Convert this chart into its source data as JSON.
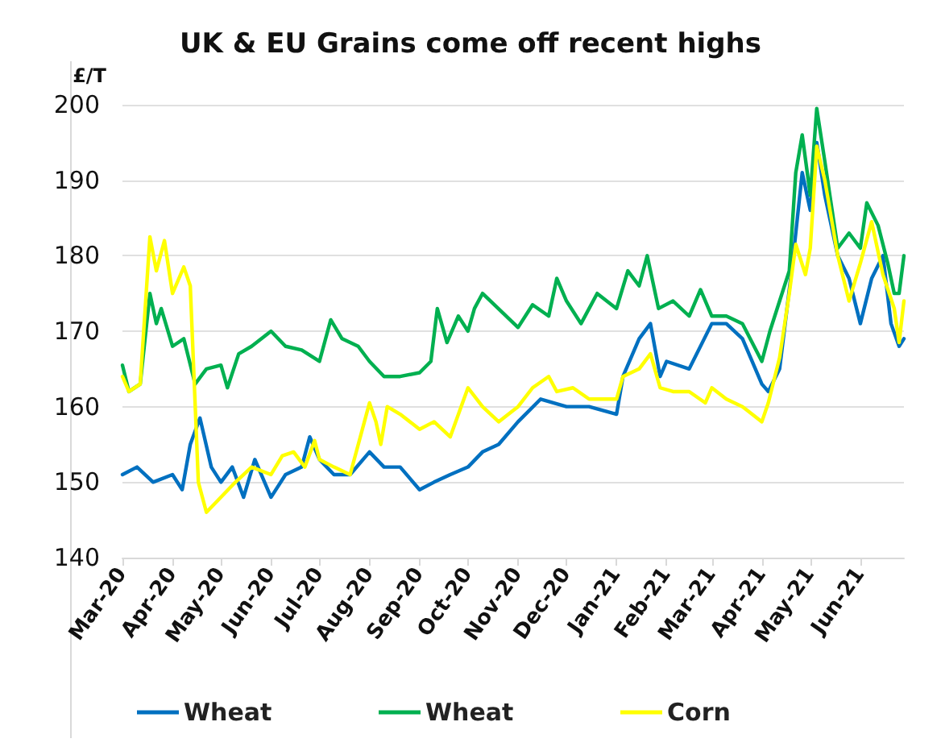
{
  "chart_data": {
    "type": "line",
    "title": "UK & EU Grains come off recent highs",
    "ylabel": "£/T",
    "xlim": [
      "2020-03-01",
      "2021-06-28"
    ],
    "xticks": [
      {
        "value": "2020-03-01",
        "label": "Mar-20"
      },
      {
        "value": "2020-04-01",
        "label": "Apr-20"
      },
      {
        "value": "2020-05-01",
        "label": "May-20"
      },
      {
        "value": "2020-06-01",
        "label": "Jun-20"
      },
      {
        "value": "2020-07-01",
        "label": "Jul-20"
      },
      {
        "value": "2020-08-01",
        "label": "Aug-20"
      },
      {
        "value": "2020-09-01",
        "label": "Sep-20"
      },
      {
        "value": "2020-10-01",
        "label": "Oct-20"
      },
      {
        "value": "2020-11-01",
        "label": "Nov-20"
      },
      {
        "value": "2020-12-01",
        "label": "Dec-20"
      },
      {
        "value": "2021-01-01",
        "label": "Jan-21"
      },
      {
        "value": "2021-02-01",
        "label": "Feb-21"
      },
      {
        "value": "2021-03-01",
        "label": "Mar-21"
      },
      {
        "value": "2021-04-01",
        "label": "Apr-21"
      },
      {
        "value": "2021-05-01",
        "label": "May-21"
      },
      {
        "value": "2021-06-01",
        "label": "Jun-21"
      }
    ],
    "ylim": [
      140,
      200
    ],
    "yticks": [
      140,
      150,
      160,
      170,
      180,
      190,
      200
    ],
    "grid": "y",
    "legend": "bottom",
    "marker": "none",
    "line_style": "solid",
    "series": [
      {
        "name": "Wheat",
        "color": "#0070c0",
        "x": [
          "2020-03-01",
          "2020-03-10",
          "2020-03-20",
          "2020-04-01",
          "2020-04-07",
          "2020-04-12",
          "2020-04-18",
          "2020-04-25",
          "2020-05-01",
          "2020-05-08",
          "2020-05-15",
          "2020-05-22",
          "2020-06-01",
          "2020-06-10",
          "2020-06-20",
          "2020-06-25",
          "2020-07-01",
          "2020-07-10",
          "2020-07-20",
          "2020-08-01",
          "2020-08-10",
          "2020-08-20",
          "2020-09-01",
          "2020-09-10",
          "2020-09-20",
          "2020-10-01",
          "2020-10-10",
          "2020-10-20",
          "2020-11-01",
          "2020-11-15",
          "2020-12-01",
          "2020-12-15",
          "2021-01-01",
          "2021-01-05",
          "2021-01-15",
          "2021-01-22",
          "2021-01-28",
          "2021-02-01",
          "2021-02-15",
          "2021-03-01",
          "2021-03-10",
          "2021-03-20",
          "2021-04-01",
          "2021-04-05",
          "2021-04-12",
          "2021-04-20",
          "2021-04-26",
          "2021-05-01",
          "2021-05-05",
          "2021-05-10",
          "2021-05-18",
          "2021-05-25",
          "2021-06-01",
          "2021-06-08",
          "2021-06-15",
          "2021-06-20",
          "2021-06-25",
          "2021-06-28"
        ],
        "values": [
          151,
          152,
          150,
          151,
          149,
          155,
          158.5,
          152,
          150,
          152,
          148,
          153,
          148,
          151,
          152,
          156,
          153,
          151,
          151,
          154,
          152,
          152,
          149,
          150,
          151,
          152,
          154,
          155,
          158,
          161,
          160,
          160,
          159,
          164,
          169,
          171,
          164,
          166,
          165,
          171,
          171,
          169,
          163,
          162,
          165,
          179,
          191,
          186,
          195,
          188,
          180,
          177,
          171,
          177,
          180,
          171,
          168,
          169
        ]
      },
      {
        "name": "Wheat",
        "color": "#00b050",
        "x": [
          "2020-03-01",
          "2020-03-05",
          "2020-03-12",
          "2020-03-18",
          "2020-03-22",
          "2020-03-25",
          "2020-04-01",
          "2020-04-08",
          "2020-04-15",
          "2020-04-22",
          "2020-05-01",
          "2020-05-05",
          "2020-05-12",
          "2020-05-20",
          "2020-06-01",
          "2020-06-10",
          "2020-06-20",
          "2020-07-01",
          "2020-07-08",
          "2020-07-15",
          "2020-07-25",
          "2020-08-01",
          "2020-08-10",
          "2020-08-20",
          "2020-09-01",
          "2020-09-08",
          "2020-09-12",
          "2020-09-18",
          "2020-09-25",
          "2020-10-01",
          "2020-10-05",
          "2020-10-10",
          "2020-11-01",
          "2020-11-10",
          "2020-11-20",
          "2020-11-25",
          "2020-12-01",
          "2020-12-10",
          "2020-12-20",
          "2021-01-01",
          "2021-01-08",
          "2021-01-15",
          "2021-01-20",
          "2021-01-27",
          "2021-02-05",
          "2021-02-15",
          "2021-02-22",
          "2021-03-01",
          "2021-03-10",
          "2021-03-20",
          "2021-04-01",
          "2021-04-06",
          "2021-04-12",
          "2021-04-18",
          "2021-04-22",
          "2021-04-26",
          "2021-05-01",
          "2021-05-05",
          "2021-05-10",
          "2021-05-18",
          "2021-05-25",
          "2021-06-01",
          "2021-06-05",
          "2021-06-12",
          "2021-06-18",
          "2021-06-22",
          "2021-06-25",
          "2021-06-28"
        ],
        "values": [
          165.5,
          162,
          163,
          175,
          171,
          173,
          168,
          169,
          163,
          165,
          165.5,
          162.5,
          167,
          168,
          170,
          168,
          167.5,
          166,
          171.5,
          169,
          168,
          166,
          164,
          164,
          164.5,
          166,
          173,
          168.5,
          172,
          170,
          173,
          175,
          170.5,
          173.5,
          172,
          177,
          174,
          171,
          175,
          173,
          178,
          176,
          180,
          173,
          174,
          172,
          175.5,
          172,
          172,
          171,
          166,
          170,
          174,
          178,
          191,
          196,
          188,
          199.5,
          192.5,
          181,
          183,
          181,
          187,
          184,
          179,
          175,
          175,
          180
        ]
      },
      {
        "name": "Corn",
        "color": "#ffff00",
        "x": [
          "2020-03-01",
          "2020-03-05",
          "2020-03-12",
          "2020-03-18",
          "2020-03-22",
          "2020-03-27",
          "2020-04-01",
          "2020-04-08",
          "2020-04-12",
          "2020-04-17",
          "2020-04-22",
          "2020-05-01",
          "2020-05-10",
          "2020-05-20",
          "2020-06-01",
          "2020-06-08",
          "2020-06-15",
          "2020-06-22",
          "2020-06-28",
          "2020-07-01",
          "2020-07-10",
          "2020-07-20",
          "2020-08-01",
          "2020-08-05",
          "2020-08-08",
          "2020-08-12",
          "2020-08-20",
          "2020-09-01",
          "2020-09-10",
          "2020-09-20",
          "2020-10-01",
          "2020-10-10",
          "2020-10-20",
          "2020-11-01",
          "2020-11-10",
          "2020-11-20",
          "2020-11-25",
          "2020-12-05",
          "2020-12-15",
          "2021-01-01",
          "2021-01-05",
          "2021-01-15",
          "2021-01-22",
          "2021-01-28",
          "2021-02-05",
          "2021-02-15",
          "2021-02-25",
          "2021-03-01",
          "2021-03-10",
          "2021-03-20",
          "2021-04-01",
          "2021-04-05",
          "2021-04-12",
          "2021-04-18",
          "2021-04-22",
          "2021-04-28",
          "2021-05-01",
          "2021-05-05",
          "2021-05-10",
          "2021-05-18",
          "2021-05-25",
          "2021-06-01",
          "2021-06-08",
          "2021-06-15",
          "2021-06-22",
          "2021-06-25",
          "2021-06-28"
        ],
        "values": [
          164,
          162,
          163,
          182.5,
          178,
          182,
          175,
          178.5,
          176,
          150,
          146,
          148,
          150,
          152,
          151,
          153.5,
          154,
          152,
          155.5,
          153,
          152,
          151,
          160.5,
          158,
          155,
          160,
          159,
          157,
          158,
          156,
          162.5,
          160,
          158,
          160,
          162.5,
          164,
          162,
          162.5,
          161,
          161,
          164,
          165,
          167,
          162.5,
          162,
          162,
          160.5,
          162.5,
          161,
          160,
          158,
          160.5,
          166.5,
          175,
          181.5,
          177.5,
          181,
          194.5,
          190,
          180,
          174,
          179,
          184.5,
          177.5,
          173,
          168.5,
          174
        ]
      }
    ]
  }
}
